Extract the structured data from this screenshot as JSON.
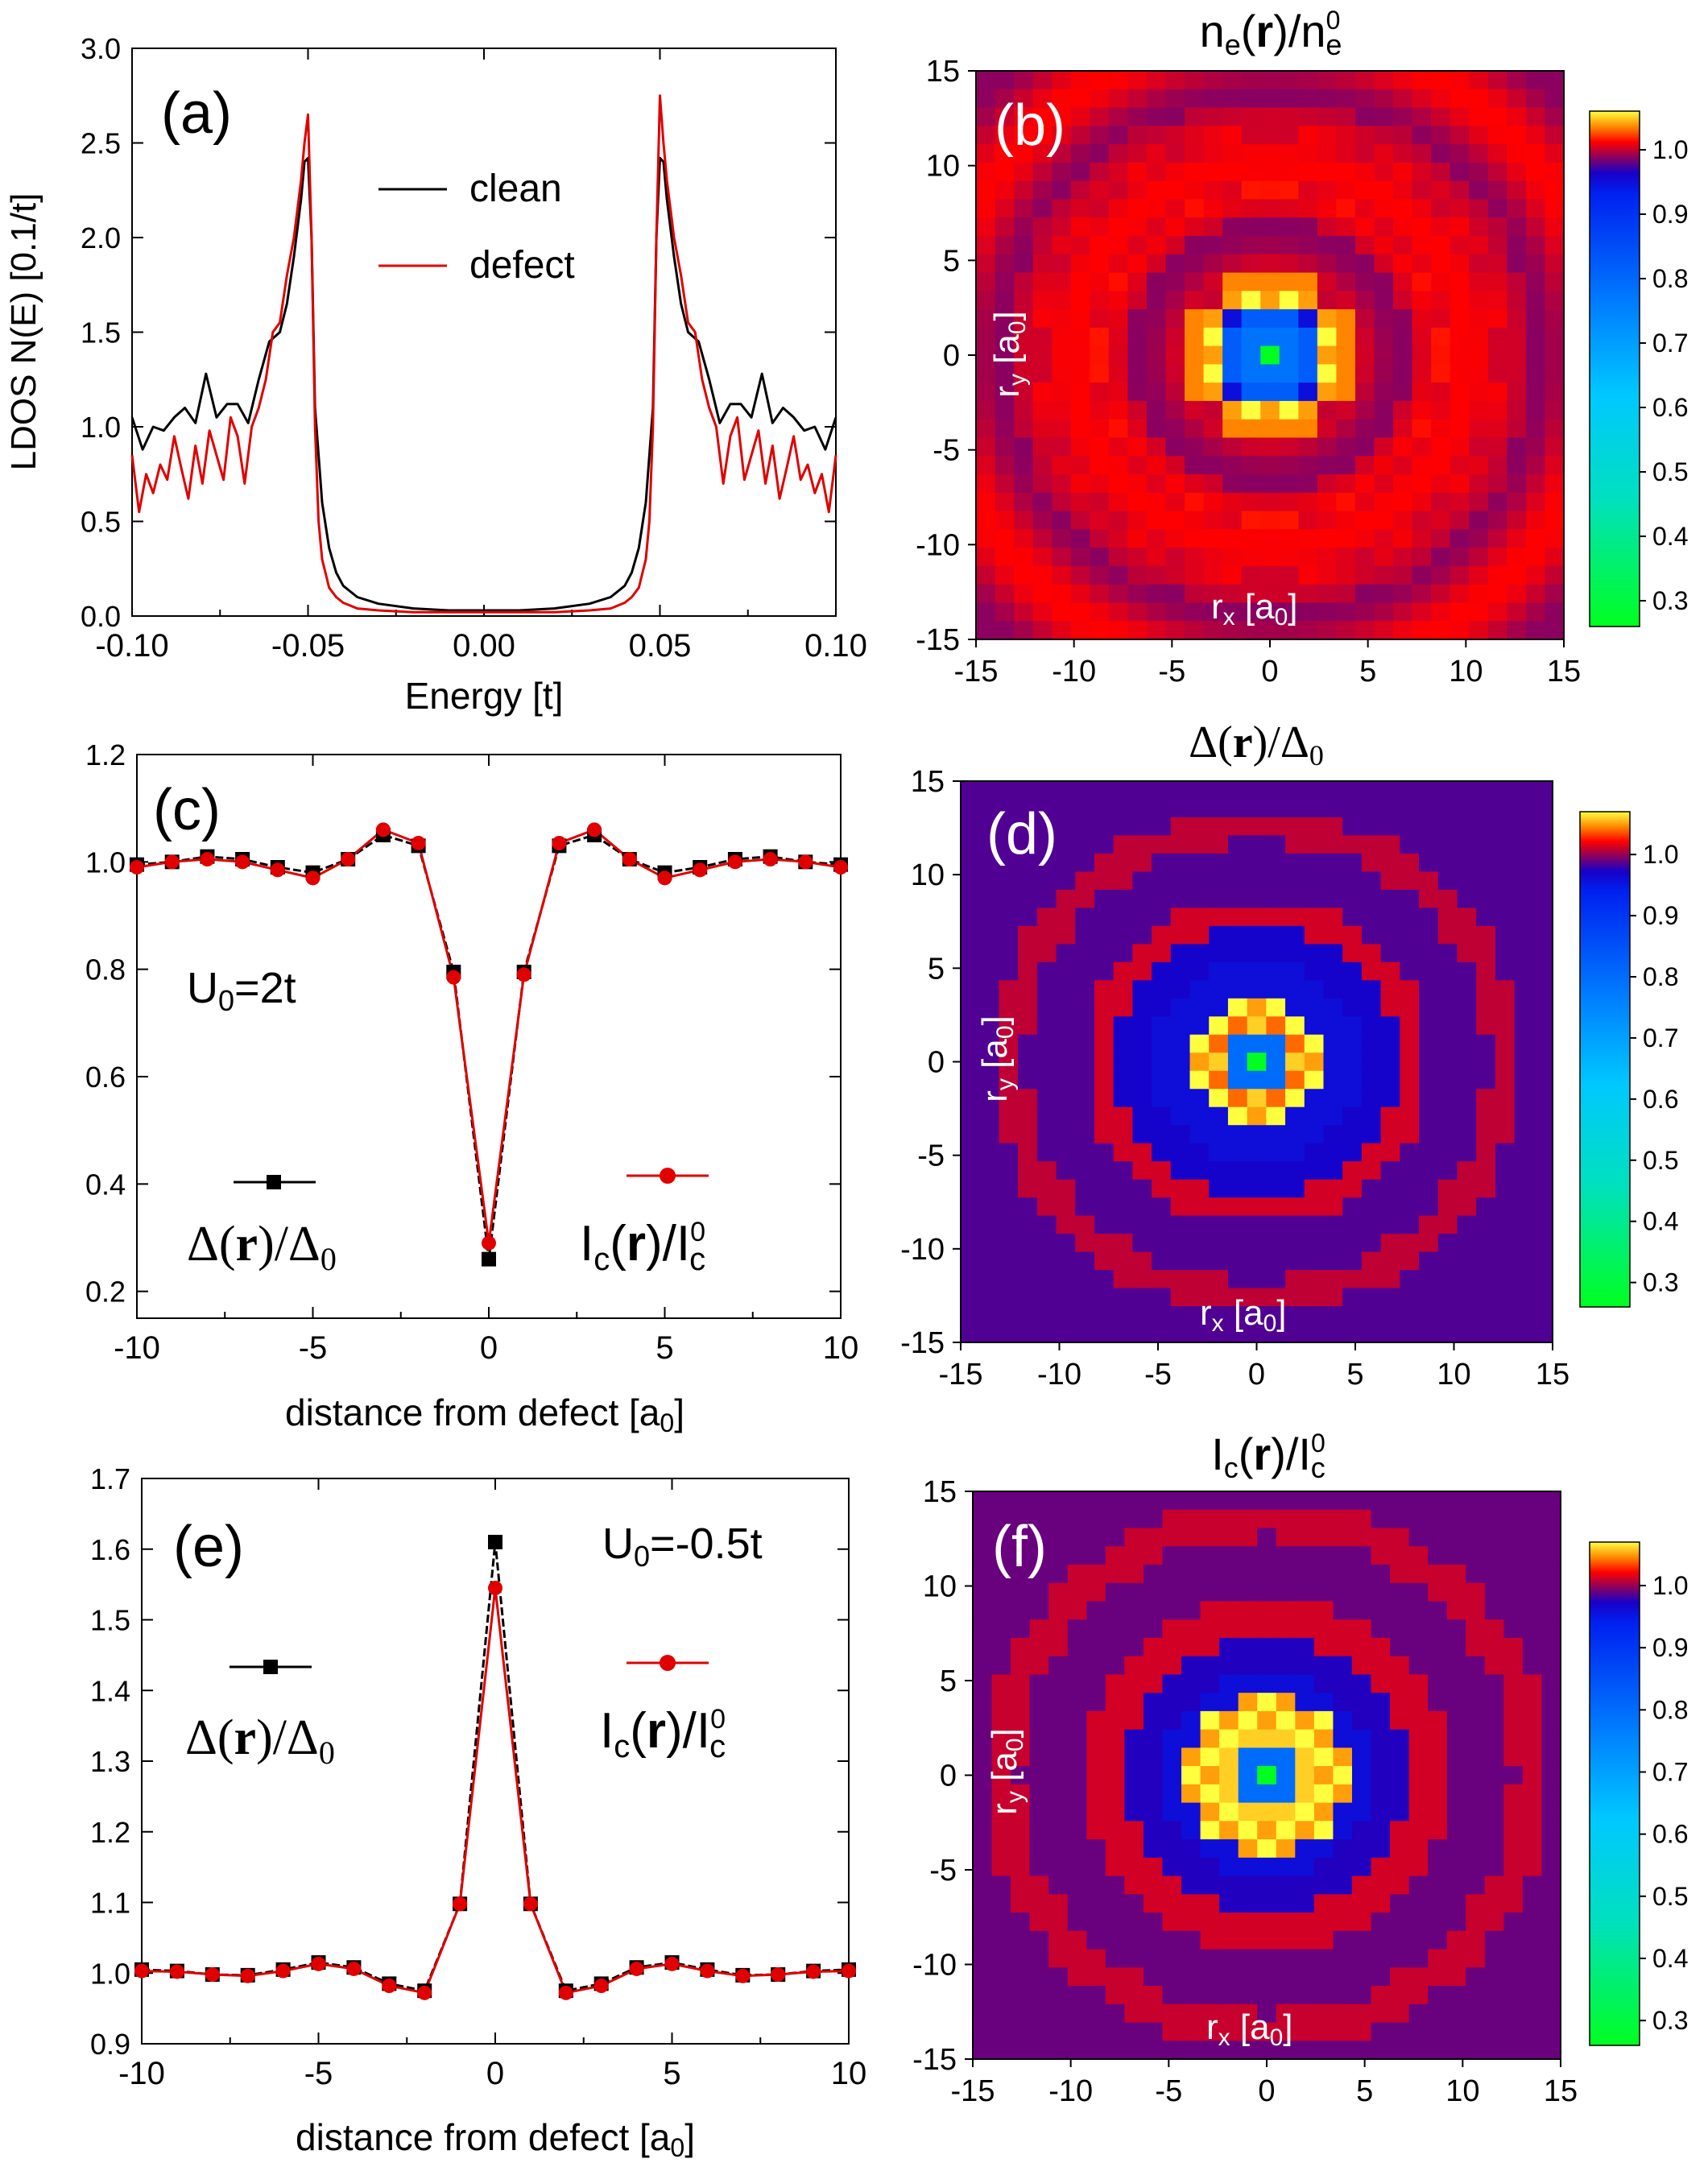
{
  "panels": {
    "a": {
      "label": "(a)",
      "type": "line",
      "xlabel": "Energy [t]",
      "ylabel": "LDOS N(E) [0.1/t]",
      "xlim": [
        -0.1,
        0.1
      ],
      "ylim": [
        0.0,
        3.0
      ],
      "xticks": [
        "-0.10",
        "-0.05",
        "0.00",
        "0.05",
        "0.10"
      ],
      "xtick_values": [
        -0.1,
        -0.05,
        0.0,
        0.05,
        0.1
      ],
      "yticks": [
        "0.0",
        "0.5",
        "1.0",
        "1.5",
        "2.0",
        "2.5",
        "3.0"
      ],
      "ytick_values": [
        0,
        0.5,
        1.0,
        1.5,
        2.0,
        2.5,
        3.0
      ],
      "legend": [
        {
          "name": "clean",
          "color": "#000000"
        },
        {
          "name": "defect",
          "color": "#e00000"
        }
      ]
    },
    "b": {
      "label": "(b)",
      "type": "heatmap",
      "title_main": "n",
      "title_sub": "e",
      "title_mid": "(",
      "title_bold": "r",
      "title_end": ")/n",
      "title_sup": "0",
      "title_sub2": "e",
      "xlabel": "r",
      "xlabel_sub": "x",
      "xlabel_unit": " [a",
      "xlabel_unit_sub": "0",
      "xlabel_close": "]",
      "ylabel": "r",
      "ylabel_sub": "y",
      "ylabel_unit": " [a",
      "ylabel_unit_sub": "0",
      "ylabel_close": "]",
      "xticks": [
        "-15",
        "-10",
        "-5",
        "0",
        "5",
        "10",
        "15"
      ],
      "yticks": [
        "15",
        "10",
        "5",
        "0",
        "-5",
        "-10",
        "-15"
      ],
      "colorbar_ticks": [
        "1.0",
        "0.9",
        "0.8",
        "0.7",
        "0.6",
        "0.5",
        "0.4",
        "0.3"
      ],
      "colorbar_values": [
        1.0,
        0.9,
        0.8,
        0.7,
        0.6,
        0.5,
        0.4,
        0.3
      ],
      "range": [
        0.26,
        1.06
      ]
    },
    "c": {
      "label": "(c)",
      "type": "line",
      "xlabel": "distance from defect [a",
      "xlabel_sub": "0",
      "xlabel_close": "]",
      "xlim": [
        -10,
        10
      ],
      "ylim": [
        0.15,
        1.2
      ],
      "xticks": [
        "-10",
        "-5",
        "0",
        "5",
        "10"
      ],
      "xtick_values": [
        -10,
        -5,
        0,
        5,
        10
      ],
      "yticks": [
        "0.2",
        "0.4",
        "0.6",
        "0.8",
        "1.0",
        "1.2"
      ],
      "ytick_values": [
        0.2,
        0.4,
        0.6,
        0.8,
        1.0,
        1.2
      ],
      "annotation": "U",
      "annotation_sub": "0",
      "annotation_end": "=2t",
      "legend": [
        {
          "name": "Δ(r)/Δ0",
          "color": "#000000",
          "marker": "square"
        },
        {
          "name": "Ic(r)/Ic0",
          "color": "#e00000",
          "marker": "circle"
        }
      ]
    },
    "d": {
      "label": "(d)",
      "type": "heatmap",
      "title_a": "Δ(",
      "title_bold": "r",
      "title_b": ")/Δ",
      "title_sub": "0",
      "xlabel": "r",
      "xlabel_sub": "x",
      "xlabel_unit": " [a",
      "xlabel_unit_sub": "0",
      "xlabel_close": "]",
      "ylabel": "r",
      "ylabel_sub": "y",
      "ylabel_unit": " [a",
      "ylabel_unit_sub": "0",
      "ylabel_close": "]",
      "xticks": [
        "-15",
        "-10",
        "-5",
        "0",
        "5",
        "10",
        "15"
      ],
      "yticks": [
        "15",
        "10",
        "5",
        "0",
        "-5",
        "-10",
        "-15"
      ],
      "colorbar_ticks": [
        "1.0",
        "0.9",
        "0.8",
        "0.7",
        "0.6",
        "0.5",
        "0.4",
        "0.3"
      ],
      "colorbar_values": [
        1.0,
        0.9,
        0.8,
        0.7,
        0.6,
        0.5,
        0.4,
        0.3
      ],
      "range": [
        0.26,
        1.07
      ]
    },
    "e": {
      "label": "(e)",
      "type": "line",
      "xlabel": "distance from defect [a",
      "xlabel_sub": "0",
      "xlabel_close": "]",
      "xlim": [
        -10,
        10
      ],
      "ylim": [
        0.9,
        1.7
      ],
      "xticks": [
        "-10",
        "-5",
        "0",
        "5",
        "10"
      ],
      "xtick_values": [
        -10,
        -5,
        0,
        5,
        10
      ],
      "yticks": [
        "0.9",
        "1.0",
        "1.1",
        "1.2",
        "1.3",
        "1.4",
        "1.5",
        "1.6",
        "1.7"
      ],
      "ytick_values": [
        0.9,
        1.0,
        1.1,
        1.2,
        1.3,
        1.4,
        1.5,
        1.6,
        1.7
      ],
      "annotation": "U",
      "annotation_sub": "0",
      "annotation_end": "=-0.5t",
      "legend": [
        {
          "name": "Δ(r)/Δ0",
          "color": "#000000",
          "marker": "square"
        },
        {
          "name": "Ic(r)/Ic0",
          "color": "#e00000",
          "marker": "circle"
        }
      ]
    },
    "f": {
      "label": "(f)",
      "type": "heatmap",
      "title_a": "I",
      "title_sub": "c",
      "title_mid": "(",
      "title_bold": "r",
      "title_b": ")/I",
      "title_sup": "0",
      "title_sub2": "c",
      "xlabel": "r",
      "xlabel_sub": "x",
      "xlabel_unit": " [a",
      "xlabel_unit_sub": "0",
      "xlabel_close": "]",
      "ylabel": "r",
      "ylabel_sub": "y",
      "ylabel_unit": " [a",
      "ylabel_unit_sub": "0",
      "ylabel_close": "]",
      "xticks": [
        "-15",
        "-10",
        "-5",
        "0",
        "5",
        "10",
        "15"
      ],
      "yticks": [
        "15",
        "10",
        "5",
        "0",
        "-5",
        "-10",
        "-15"
      ],
      "colorbar_ticks": [
        "1.0",
        "0.9",
        "0.8",
        "0.7",
        "0.6",
        "0.5",
        "0.4",
        "0.3"
      ],
      "colorbar_values": [
        1.0,
        0.9,
        0.8,
        0.7,
        0.6,
        0.5,
        0.4,
        0.3
      ],
      "range": [
        0.26,
        1.07
      ]
    }
  },
  "chart_data": [
    {
      "panel": "a",
      "type": "line",
      "xlabel": "Energy [t]",
      "ylabel": "LDOS N(E) [0.1/t]",
      "xlim": [
        -0.1,
        0.1
      ],
      "ylim": [
        0,
        3
      ],
      "series": [
        {
          "name": "clean",
          "color": "#000000",
          "x": [
            -0.1,
            -0.097,
            -0.094,
            -0.091,
            -0.088,
            -0.085,
            -0.082,
            -0.079,
            -0.076,
            -0.073,
            -0.07,
            -0.067,
            -0.064,
            -0.061,
            -0.058,
            -0.056,
            -0.054,
            -0.052,
            -0.051,
            -0.05,
            -0.049,
            -0.048,
            -0.046,
            -0.044,
            -0.042,
            -0.04,
            -0.036,
            -0.03,
            -0.02,
            -0.01,
            0.0,
            0.01,
            0.02,
            0.03,
            0.036,
            0.04,
            0.042,
            0.044,
            0.046,
            0.048,
            0.049,
            0.05,
            0.051,
            0.052,
            0.054,
            0.056,
            0.058,
            0.061,
            0.064,
            0.067,
            0.07,
            0.073,
            0.076,
            0.079,
            0.082,
            0.085,
            0.088,
            0.091,
            0.094,
            0.097,
            0.1
          ],
          "y": [
            1.05,
            0.88,
            1.0,
            0.98,
            1.05,
            1.1,
            1.02,
            1.28,
            1.05,
            1.12,
            1.12,
            1.02,
            1.25,
            1.45,
            1.5,
            1.65,
            1.9,
            2.2,
            2.4,
            2.42,
            2.0,
            1.1,
            0.6,
            0.36,
            0.23,
            0.16,
            0.1,
            0.065,
            0.04,
            0.03,
            0.03,
            0.03,
            0.04,
            0.065,
            0.1,
            0.16,
            0.23,
            0.36,
            0.6,
            1.1,
            2.0,
            2.42,
            2.4,
            2.2,
            1.9,
            1.65,
            1.5,
            1.45,
            1.25,
            1.02,
            1.12,
            1.12,
            1.05,
            1.28,
            1.02,
            1.1,
            1.05,
            0.98,
            1.0,
            0.88,
            1.05
          ]
        },
        {
          "name": "defect",
          "color": "#e00000",
          "x": [
            -0.1,
            -0.098,
            -0.096,
            -0.094,
            -0.092,
            -0.09,
            -0.088,
            -0.086,
            -0.084,
            -0.082,
            -0.08,
            -0.078,
            -0.076,
            -0.074,
            -0.072,
            -0.07,
            -0.068,
            -0.066,
            -0.064,
            -0.062,
            -0.06,
            -0.058,
            -0.056,
            -0.054,
            -0.052,
            -0.051,
            -0.05,
            -0.049,
            -0.048,
            -0.047,
            -0.046,
            -0.044,
            -0.042,
            -0.04,
            -0.036,
            -0.03,
            -0.02,
            -0.01,
            0.0,
            0.01,
            0.02,
            0.03,
            0.036,
            0.04,
            0.042,
            0.044,
            0.046,
            0.047,
            0.048,
            0.049,
            0.05,
            0.051,
            0.052,
            0.054,
            0.056,
            0.058,
            0.06,
            0.062,
            0.064,
            0.066,
            0.068,
            0.07,
            0.072,
            0.074,
            0.076,
            0.078,
            0.08,
            0.082,
            0.084,
            0.086,
            0.088,
            0.09,
            0.092,
            0.094,
            0.096,
            0.098,
            0.1
          ],
          "y": [
            0.85,
            0.55,
            0.75,
            0.65,
            0.8,
            0.72,
            0.95,
            0.78,
            0.62,
            0.9,
            0.7,
            0.98,
            0.85,
            0.72,
            1.05,
            0.95,
            0.7,
            1.0,
            1.1,
            1.25,
            1.5,
            1.55,
            1.8,
            2.0,
            2.3,
            2.5,
            2.65,
            2.0,
            1.0,
            0.5,
            0.3,
            0.15,
            0.1,
            0.07,
            0.04,
            0.03,
            0.02,
            0.02,
            0.02,
            0.02,
            0.02,
            0.03,
            0.04,
            0.07,
            0.1,
            0.15,
            0.3,
            0.5,
            1.0,
            2.0,
            2.75,
            2.5,
            2.3,
            2.0,
            1.8,
            1.55,
            1.5,
            1.25,
            1.1,
            1.0,
            0.7,
            0.95,
            1.05,
            0.72,
            0.85,
            0.98,
            0.7,
            0.9,
            0.62,
            0.78,
            0.95,
            0.72,
            0.8,
            0.65,
            0.75,
            0.55,
            0.85
          ]
        }
      ]
    },
    {
      "panel": "b",
      "type": "heatmap",
      "title": "ne(r)/ne0",
      "x_range": [
        -15,
        15
      ],
      "y_range": [
        -15,
        15
      ],
      "value_range": [
        0.26,
        1.06
      ],
      "core": {
        "center": 0.26,
        "r1": 0.78,
        "r2": 0.8,
        "r3": 1.05,
        "plateau": 1.03,
        "edge": 1.0,
        "core_radius": 4.5,
        "oscillation": 0.02
      }
    },
    {
      "panel": "c",
      "type": "line",
      "xlabel": "distance from defect [a0]",
      "xlim": [
        -10,
        10
      ],
      "ylim": [
        0.15,
        1.2
      ],
      "x": [
        -10,
        -9,
        -8,
        -7,
        -6,
        -5,
        -4,
        -3,
        -2,
        -1,
        0,
        1,
        2,
        3,
        4,
        5,
        6,
        7,
        8,
        9,
        10
      ],
      "series": [
        {
          "name": "Δ(r)/Δ0",
          "color": "#000000",
          "marker": "square",
          "values": [
            0.995,
            1.0,
            1.01,
            1.005,
            0.99,
            0.98,
            1.005,
            1.05,
            1.03,
            0.795,
            0.26,
            0.795,
            1.03,
            1.05,
            1.005,
            0.98,
            0.99,
            1.005,
            1.01,
            1.0,
            0.995
          ]
        },
        {
          "name": "Ic(r)/Ic0",
          "color": "#e00000",
          "marker": "circle",
          "values": [
            0.99,
            1.0,
            1.005,
            1.0,
            0.985,
            0.97,
            1.005,
            1.06,
            1.035,
            0.785,
            0.29,
            0.79,
            1.035,
            1.06,
            1.005,
            0.97,
            0.985,
            1.0,
            1.005,
            1.0,
            0.99
          ]
        }
      ]
    },
    {
      "panel": "d",
      "type": "heatmap",
      "title": "Δ(r)/Δ0",
      "x_range": [
        -15,
        15
      ],
      "y_range": [
        -15,
        15
      ],
      "value_range": [
        0.26,
        1.07
      ]
    },
    {
      "panel": "e",
      "type": "line",
      "xlabel": "distance from defect [a0]",
      "xlim": [
        -10,
        10
      ],
      "ylim": [
        0.9,
        1.7
      ],
      "x": [
        -10,
        -9,
        -8,
        -7,
        -6,
        -5,
        -4,
        -3,
        -2,
        -1,
        0,
        1,
        2,
        3,
        4,
        5,
        6,
        7,
        8,
        9,
        10
      ],
      "series": [
        {
          "name": "Δ(r)/Δ0",
          "color": "#000000",
          "marker": "square",
          "values": [
            1.005,
            1.003,
            0.998,
            0.997,
            1.005,
            1.015,
            1.008,
            0.985,
            0.975,
            1.098,
            1.61,
            1.098,
            0.975,
            0.985,
            1.008,
            1.015,
            1.005,
            0.997,
            0.998,
            1.003,
            1.005
          ]
        },
        {
          "name": "Ic(r)/Ic0",
          "color": "#e00000",
          "marker": "circle",
          "values": [
            1.003,
            1.002,
            0.998,
            0.996,
            1.003,
            1.013,
            1.006,
            0.982,
            0.972,
            1.098,
            1.545,
            1.098,
            0.972,
            0.982,
            1.006,
            1.013,
            1.003,
            0.996,
            0.998,
            1.002,
            1.003
          ]
        }
      ]
    },
    {
      "panel": "f",
      "type": "heatmap",
      "title": "Ic(r)/Ic0",
      "x_range": [
        -15,
        15
      ],
      "y_range": [
        -15,
        15
      ],
      "value_range": [
        0.26,
        1.07
      ]
    }
  ]
}
